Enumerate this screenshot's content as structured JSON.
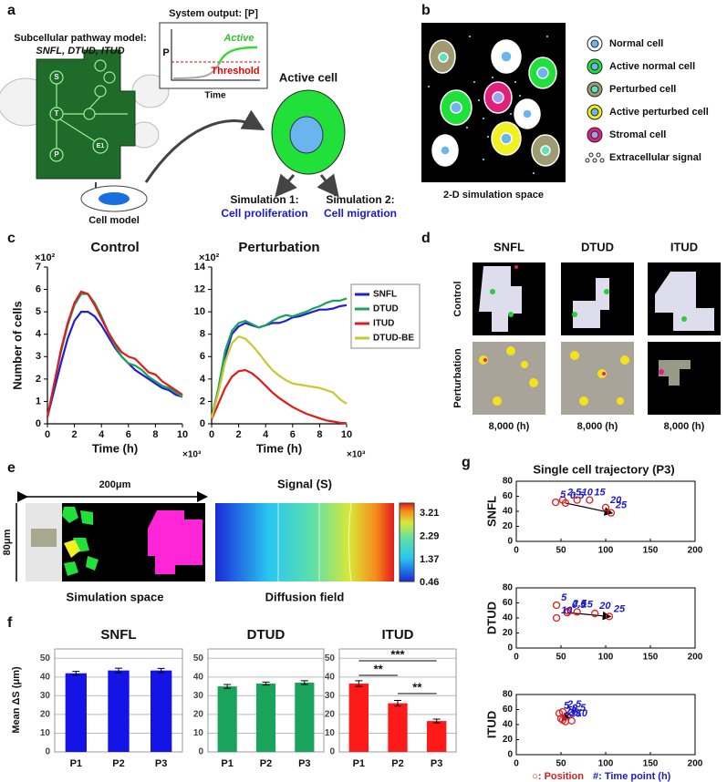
{
  "panel_labels": [
    "a",
    "b",
    "c",
    "d",
    "e",
    "f",
    "g"
  ],
  "panel_a": {
    "model_title": "Subcellular pathway model:",
    "model_names": "SNFL, DTUD, ITUD",
    "output_title": "System output: [P]",
    "active": "Active",
    "threshold": "Threshold",
    "y_label": "P",
    "x_label": "Time",
    "active_cell": "Active cell",
    "cell_model": "Cell model",
    "sim1_title": "Simulation 1:",
    "sim1_name": "Cell proliferation",
    "sim2_title": "Simulation 2:",
    "sim2_name": "Cell migration",
    "nodes": [
      "S",
      "T",
      "P",
      "E1"
    ]
  },
  "panel_b": {
    "legend": [
      "Normal cell",
      "Active normal cell",
      "Perturbed cell",
      "Active perturbed cell",
      "Stromal cell",
      "Extracellular signal"
    ],
    "caption": "2-D simulation space"
  },
  "panel_d": {
    "columns": [
      "SNFL",
      "DTUD",
      "ITUD"
    ],
    "rows": [
      "Control",
      "Perturbation"
    ],
    "times": [
      "8,000 (h)",
      "8,000 (h)",
      "8,000 (h)"
    ]
  },
  "panel_e": {
    "width_label": "200μm",
    "height_label": "80μm",
    "signal_title": "Signal (S)",
    "colorbar_ticks": [
      3.21,
      2.29,
      1.37,
      0.46
    ],
    "left_caption": "Simulation space",
    "right_caption": "Diffusion field"
  },
  "panel_g": {
    "title": "Single cell trajectory (P3)",
    "legend_position": "○: Position",
    "legend_time": "#: Time point (h)"
  },
  "chart_data": [
    {
      "type": "line",
      "title": "Control",
      "x_label": "Time (h)",
      "y_label": "Number of cells",
      "y_multiplier": "×10²",
      "x_multiplier": "×10³",
      "x": [
        0,
        0.5,
        1,
        1.5,
        2,
        2.5,
        3,
        3.5,
        4,
        4.5,
        5,
        5.5,
        6,
        6.5,
        7,
        7.5,
        8,
        8.5,
        9,
        9.5,
        10
      ],
      "xlim": [
        0,
        10
      ],
      "xticks": [
        0,
        2,
        4,
        6,
        8,
        10
      ],
      "ylim": [
        0,
        7
      ],
      "yticks": [
        0,
        1,
        2,
        3,
        4,
        5,
        6,
        7
      ],
      "legend": false,
      "series": [
        {
          "color": "#1f1fd6",
          "values": [
            0.3,
            1.5,
            2.7,
            3.8,
            4.6,
            5.0,
            5.0,
            4.8,
            4.4,
            3.9,
            3.4,
            3.0,
            2.7,
            2.4,
            2.2,
            2.0,
            1.8,
            1.6,
            1.5,
            1.3,
            1.2
          ]
        },
        {
          "color": "#1aa35a",
          "values": [
            0.3,
            1.8,
            3.2,
            4.4,
            5.3,
            5.8,
            5.8,
            5.4,
            4.8,
            4.1,
            3.5,
            3.0,
            2.7,
            2.6,
            2.4,
            2.1,
            1.9,
            1.7,
            1.6,
            1.4,
            1.2
          ]
        },
        {
          "color": "#e31a1c",
          "values": [
            0.3,
            1.8,
            3.3,
            4.5,
            5.4,
            5.9,
            5.8,
            5.3,
            4.7,
            4.1,
            3.6,
            3.2,
            3.0,
            2.9,
            2.6,
            2.3,
            2.2,
            1.9,
            1.7,
            1.5,
            1.3
          ]
        }
      ]
    },
    {
      "type": "line",
      "title": "Perturbation",
      "x_label": "Time (h)",
      "y_multiplier": "×10²",
      "x_multiplier": "×10³",
      "x": [
        0,
        0.5,
        1,
        1.5,
        2,
        2.5,
        3,
        3.5,
        4,
        4.5,
        5,
        5.5,
        6,
        6.5,
        7,
        7.5,
        8,
        8.5,
        9,
        9.5,
        10
      ],
      "xlim": [
        0,
        10
      ],
      "xticks": [
        0,
        2,
        4,
        6,
        8,
        10
      ],
      "ylim": [
        0,
        14
      ],
      "yticks": [
        0,
        2,
        4,
        6,
        8,
        10,
        12,
        14
      ],
      "legend": true,
      "series": [
        {
          "name": "SNFL",
          "color": "#1f1fd6",
          "values": [
            0.5,
            3,
            6,
            8,
            8.7,
            9.0,
            8.8,
            8.6,
            8.8,
            9.0,
            9.0,
            9.2,
            9.5,
            9.6,
            9.8,
            10,
            10.2,
            10.2,
            10.3,
            10.5,
            10.6
          ]
        },
        {
          "name": "DTUD",
          "color": "#1aa35a",
          "values": [
            0.5,
            3.2,
            6.5,
            8.3,
            9.0,
            9.2,
            8.9,
            8.6,
            8.8,
            9.2,
            9.5,
            9.7,
            9.6,
            9.8,
            10.0,
            10.3,
            10.5,
            10.8,
            11.0,
            11.0,
            11.2
          ]
        },
        {
          "name": "ITUD",
          "color": "#e31a1c",
          "values": [
            0.4,
            1.8,
            3.2,
            4.2,
            4.7,
            4.8,
            4.5,
            4.0,
            3.4,
            2.8,
            2.3,
            1.9,
            1.5,
            1.2,
            0.9,
            0.7,
            0.5,
            0.3,
            0.2,
            0.1,
            0.05
          ]
        },
        {
          "name": "DTUD-BE",
          "color": "#c8c832",
          "values": [
            0.5,
            2.8,
            5.5,
            7.2,
            7.8,
            7.6,
            7.0,
            6.3,
            5.5,
            4.8,
            4.3,
            3.9,
            3.6,
            3.5,
            3.4,
            3.3,
            3.2,
            3.0,
            2.8,
            2.2,
            1.8
          ]
        }
      ]
    },
    {
      "type": "bar",
      "title": "SNFL",
      "y_label": "Mean ΔS (μm)",
      "categories": [
        "P1",
        "P2",
        "P3"
      ],
      "values": [
        42,
        43.5,
        43.5
      ],
      "errors": [
        1,
        1.2,
        1.1
      ],
      "color": "#1414e6",
      "ylim": [
        0,
        55
      ],
      "yticks": [
        0,
        10,
        20,
        30,
        40,
        50
      ],
      "grid": true
    },
    {
      "type": "bar",
      "title": "DTUD",
      "categories": [
        "P1",
        "P2",
        "P3"
      ],
      "values": [
        35,
        36.5,
        37
      ],
      "errors": [
        1,
        0.8,
        1
      ],
      "color": "#1aa35a",
      "ylim": [
        0,
        55
      ],
      "yticks": [
        0,
        10,
        20,
        30,
        40,
        50
      ],
      "grid": true
    },
    {
      "type": "bar",
      "title": "ITUD",
      "categories": [
        "P1",
        "P2",
        "P3"
      ],
      "values": [
        36.5,
        26,
        16.5
      ],
      "errors": [
        1.5,
        1.5,
        1
      ],
      "color": "#ff1a1a",
      "ylim": [
        0,
        55
      ],
      "yticks": [
        0,
        10,
        20,
        30,
        40,
        50
      ],
      "grid": true,
      "annotations": [
        "**",
        "***",
        "**"
      ]
    },
    {
      "type": "scatter",
      "y_label": "SNFL",
      "x": [
        55,
        52,
        44,
        68,
        82,
        100,
        106
      ],
      "y": [
        51,
        55,
        52,
        55,
        55,
        45,
        38
      ],
      "times": [
        0.5,
        2.5,
        5,
        10,
        15,
        20,
        25
      ],
      "color": "#e31a1c",
      "label_color": "#1a1acc",
      "xlim": [
        0,
        200
      ],
      "xticks": [
        0,
        50,
        100,
        150,
        200
      ],
      "ylim": [
        0,
        80
      ],
      "yticks": [
        0,
        20,
        40,
        60,
        80
      ]
    },
    {
      "type": "scatter",
      "y_label": "DTUD",
      "x": [
        57,
        58,
        45,
        45,
        68,
        88,
        104
      ],
      "y": [
        47,
        49,
        57,
        40,
        48,
        46,
        42
      ],
      "times": [
        0.5,
        2.5,
        5,
        10,
        15,
        20,
        25
      ],
      "color": "#e31a1c",
      "label_color": "#1a1acc",
      "xlim": [
        0,
        200
      ],
      "xticks": [
        0,
        50,
        100,
        150,
        200
      ],
      "ylim": [
        0,
        80
      ],
      "yticks": [
        0,
        20,
        40,
        60,
        80
      ]
    },
    {
      "type": "scatter",
      "y_label": "ITUD",
      "x": [
        57,
        52,
        48,
        62,
        55,
        50,
        52
      ],
      "y": [
        52,
        57,
        55,
        45,
        44,
        48,
        46
      ],
      "times": [
        0.5,
        2.5,
        5,
        10,
        15,
        20,
        25
      ],
      "color": "#e31a1c",
      "label_color": "#1a1acc",
      "xlim": [
        0,
        200
      ],
      "xticks": [
        0,
        50,
        100,
        150,
        200
      ],
      "ylim": [
        0,
        80
      ],
      "yticks": [
        0,
        20,
        40,
        60,
        80
      ]
    }
  ]
}
